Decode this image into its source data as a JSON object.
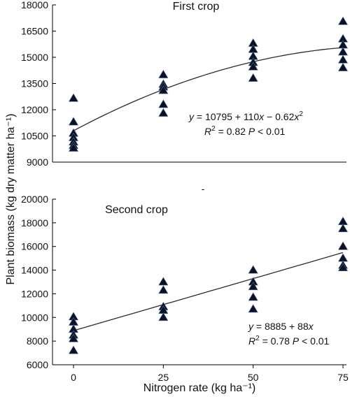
{
  "ylabel_main": "Plant biomass (kg dry matter ha⁻¹)",
  "stray_mark": "-",
  "chart_data": [
    {
      "type": "scatter",
      "title": "First crop",
      "xlabel": "",
      "ylabel": "",
      "xlim": [
        0,
        75
      ],
      "ylim": [
        9000,
        18000
      ],
      "x_ticks": [
        "0",
        "25",
        "50",
        "75"
      ],
      "y_ticks": [
        "9000",
        "10500",
        "12000",
        "13500",
        "15000",
        "16500",
        "18000"
      ],
      "grid": false,
      "points": [
        {
          "x": 0,
          "y": 12650
        },
        {
          "x": 0,
          "y": 11300
        },
        {
          "x": 0,
          "y": 10650
        },
        {
          "x": 0,
          "y": 10400
        },
        {
          "x": 0,
          "y": 10150
        },
        {
          "x": 0,
          "y": 9950
        },
        {
          "x": 0,
          "y": 9800
        },
        {
          "x": 25,
          "y": 14000
        },
        {
          "x": 25,
          "y": 13450
        },
        {
          "x": 25,
          "y": 13300
        },
        {
          "x": 25,
          "y": 13100
        },
        {
          "x": 25,
          "y": 12300
        },
        {
          "x": 25,
          "y": 11800
        },
        {
          "x": 50,
          "y": 15800
        },
        {
          "x": 50,
          "y": 15450
        },
        {
          "x": 50,
          "y": 15050
        },
        {
          "x": 50,
          "y": 14700
        },
        {
          "x": 50,
          "y": 14450
        },
        {
          "x": 50,
          "y": 13800
        },
        {
          "x": 75,
          "y": 17050
        },
        {
          "x": 75,
          "y": 16050
        },
        {
          "x": 75,
          "y": 15700
        },
        {
          "x": 75,
          "y": 15300
        },
        {
          "x": 75,
          "y": 14850
        },
        {
          "x": 75,
          "y": 14400
        }
      ],
      "fit": {
        "a": 10795,
        "b": 110,
        "c": -0.62
      },
      "equation": {
        "y_var": "y",
        "eq_text": " = 10795 + 110",
        "x_var": "x",
        "eq_tail": " − 0.62",
        "x_var2": "x",
        "sup": "2",
        "r2_var": "R",
        "r2_sup": "2",
        "r2_text": " = 0.82 ",
        "p_var": "P",
        "p_text": " < 0.01"
      }
    },
    {
      "type": "scatter",
      "title": "Second crop",
      "xlabel": "Nitrogen rate (kg ha⁻¹)",
      "ylabel": "",
      "xlim": [
        0,
        75
      ],
      "ylim": [
        6000,
        20000
      ],
      "x_ticks": [
        "0",
        "25",
        "50",
        "75"
      ],
      "y_ticks": [
        "6000",
        "8000",
        "10000",
        "12000",
        "14000",
        "16000",
        "18000",
        "20000"
      ],
      "grid": false,
      "points": [
        {
          "x": 0,
          "y": 10050
        },
        {
          "x": 0,
          "y": 9600
        },
        {
          "x": 0,
          "y": 9000
        },
        {
          "x": 0,
          "y": 8500
        },
        {
          "x": 0,
          "y": 8200
        },
        {
          "x": 0,
          "y": 7200
        },
        {
          "x": 25,
          "y": 13000
        },
        {
          "x": 25,
          "y": 12300
        },
        {
          "x": 25,
          "y": 10900
        },
        {
          "x": 25,
          "y": 10600
        },
        {
          "x": 25,
          "y": 10000
        },
        {
          "x": 50,
          "y": 14000
        },
        {
          "x": 50,
          "y": 13000
        },
        {
          "x": 50,
          "y": 12600
        },
        {
          "x": 50,
          "y": 11700
        },
        {
          "x": 50,
          "y": 10700
        },
        {
          "x": 75,
          "y": 18100
        },
        {
          "x": 75,
          "y": 17500
        },
        {
          "x": 75,
          "y": 16000
        },
        {
          "x": 75,
          "y": 15000
        },
        {
          "x": 75,
          "y": 14400
        },
        {
          "x": 75,
          "y": 14200
        }
      ],
      "fit": {
        "a": 8885,
        "b": 88,
        "c": 0
      },
      "equation": {
        "y_var": "y",
        "eq_text": " = 8885 + 88",
        "x_var": "x",
        "eq_tail": "",
        "x_var2": "",
        "sup": "",
        "r2_var": "R",
        "r2_sup": "2",
        "r2_text": " = 0.78 ",
        "p_var": "P",
        "p_text": " < 0.01"
      }
    }
  ]
}
